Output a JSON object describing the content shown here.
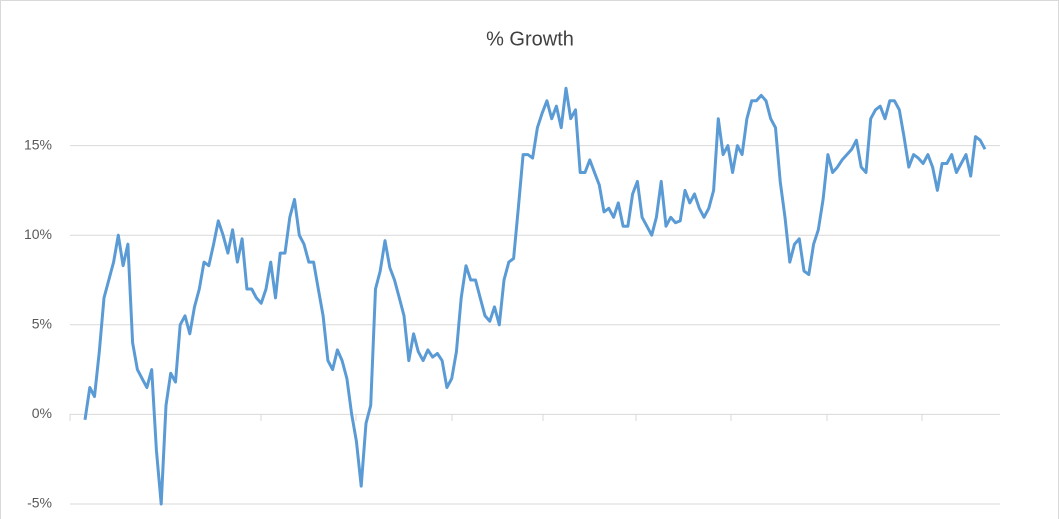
{
  "chart_data": {
    "type": "line",
    "title": "% Growth",
    "series": [
      {
        "color": "#5b9bd5",
        "values": [
          -0.3,
          1.5,
          1.0,
          3.5,
          6.5,
          7.5,
          8.5,
          10,
          8.3,
          9.5,
          4,
          2.5,
          2,
          1.5,
          2.5,
          -2,
          -5,
          0.5,
          2.3,
          1.8,
          5,
          5.5,
          4.5,
          6,
          7,
          8.5,
          8.3,
          9.5,
          10.8,
          10,
          9,
          10.3,
          8.5,
          9.8,
          7,
          7,
          6.5,
          6.2,
          7,
          8.5,
          6.5,
          9,
          9,
          11,
          12,
          10,
          9.5,
          8.5,
          8.5,
          7,
          5.5,
          3,
          2.5,
          3.6,
          3,
          2,
          0,
          -1.5,
          -4,
          -0.5,
          0.5,
          7,
          8,
          9.7,
          8.2,
          7.5,
          6.5,
          5.5,
          3,
          4.5,
          3.5,
          3,
          3.6,
          3.2,
          3.4,
          3,
          1.5,
          2,
          3.5,
          6.5,
          8.3,
          7.5,
          7.5,
          6.5,
          5.5,
          5.2,
          6,
          5,
          7.5,
          8.5,
          8.7,
          11.5,
          14.5,
          14.5,
          14.3,
          16,
          16.8,
          17.5,
          16.5,
          17.2,
          16,
          18.2,
          16.5,
          17,
          13.5,
          13.5,
          14.2,
          13.5,
          12.8,
          11.3,
          11.5,
          11,
          11.8,
          10.5,
          10.5,
          12.3,
          13,
          11,
          10.5,
          10,
          11,
          13,
          10.5,
          11,
          10.7,
          10.8,
          12.5,
          11.8,
          12.3,
          11.5,
          11,
          11.5,
          12.5,
          16.5,
          14.5,
          15,
          13.5,
          15,
          14.5,
          16.5,
          17.5,
          17.5,
          17.8,
          17.5,
          16.5,
          16,
          13,
          11,
          8.5,
          9.5,
          9.8,
          8,
          7.8,
          9.5,
          10.3,
          12,
          14.5,
          13.5,
          13.8,
          14.2,
          14.5,
          14.8,
          15.3,
          13.8,
          13.5,
          16.5,
          17,
          17.2,
          16.5,
          17.5,
          17.5,
          17,
          15.5,
          13.8,
          14.5,
          14.3,
          14,
          14.5,
          13.8,
          12.5,
          14,
          14,
          14.5,
          13.5,
          14,
          14.5,
          13.3,
          15.5,
          15.3,
          14.8
        ]
      }
    ],
    "ylim": [
      -5,
      20
    ],
    "yticks": [
      {
        "value": -5,
        "label": "-5%"
      },
      {
        "value": 0,
        "label": "0%"
      },
      {
        "value": 5,
        "label": "5%"
      },
      {
        "value": 10,
        "label": "10%"
      },
      {
        "value": 15,
        "label": "15%"
      }
    ],
    "grid": true
  }
}
